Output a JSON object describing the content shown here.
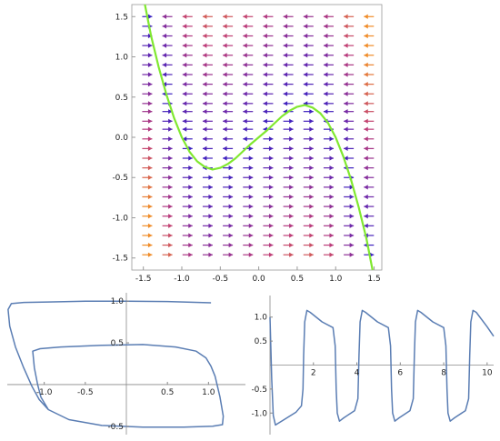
{
  "chart_data": [
    {
      "type": "vector-field",
      "title": "",
      "xlabel": "",
      "ylabel": "",
      "xlim": [
        -1.65,
        1.6
      ],
      "ylim": [
        -1.65,
        1.65
      ],
      "x_ticks": [
        "-1.5",
        "-1.0",
        "-0.5",
        "0.0",
        "0.5",
        "1.0",
        "1.5"
      ],
      "y_ticks": [
        "1.5",
        "1.0",
        "0.5",
        "0.0",
        "-0.5",
        "-1.0",
        "-1.5"
      ],
      "x_tick_values": [
        -1.5,
        -1.0,
        -0.5,
        0.0,
        0.5,
        1.0,
        1.5
      ],
      "y_tick_values": [
        1.5,
        1.0,
        0.5,
        0.0,
        -0.5,
        -1.0,
        -1.5
      ],
      "field_rows": [
        1.5,
        1.38,
        1.26,
        1.14,
        1.02,
        0.9,
        0.78,
        0.66,
        0.54,
        0.42,
        0.32,
        0.2,
        0.1,
        -0.02,
        -0.14,
        -0.26,
        -0.38,
        -0.5,
        -0.62,
        -0.74,
        -0.86,
        -0.98,
        -1.1,
        -1.22,
        -1.34,
        -1.46
      ],
      "nullcline": {
        "color": "#80e830",
        "points": [
          [
            -1.48,
            1.65
          ],
          [
            -1.4,
            1.26
          ],
          [
            -1.3,
            0.87
          ],
          [
            -1.2,
            0.53
          ],
          [
            -1.1,
            0.24
          ],
          [
            -1.0,
            0.0
          ],
          [
            -0.9,
            -0.18
          ],
          [
            -0.8,
            -0.3
          ],
          [
            -0.7,
            -0.37
          ],
          [
            -0.6,
            -0.4
          ],
          [
            -0.5,
            -0.38
          ],
          [
            -0.4,
            -0.33
          ],
          [
            -0.3,
            -0.26
          ],
          [
            -0.2,
            -0.17
          ],
          [
            -0.1,
            -0.08
          ],
          [
            0.0,
            0.0
          ],
          [
            0.1,
            0.08
          ],
          [
            0.2,
            0.17
          ],
          [
            0.3,
            0.26
          ],
          [
            0.4,
            0.33
          ],
          [
            0.5,
            0.38
          ],
          [
            0.6,
            0.4
          ],
          [
            0.7,
            0.37
          ],
          [
            0.8,
            0.3
          ],
          [
            0.9,
            0.18
          ],
          [
            1.0,
            0.0
          ],
          [
            1.1,
            -0.24
          ],
          [
            1.2,
            -0.53
          ],
          [
            1.3,
            -0.87
          ],
          [
            1.4,
            -1.26
          ],
          [
            1.48,
            -1.65
          ]
        ]
      }
    },
    {
      "type": "line",
      "title": "",
      "xlabel": "",
      "ylabel": "",
      "xlim": [
        -1.45,
        1.45
      ],
      "ylim": [
        -0.6,
        1.1
      ],
      "x_ticks": [
        "-1.0",
        "-0.5",
        "0.5",
        "1.0"
      ],
      "y_ticks": [
        "1.0",
        "0.5",
        "-0.5"
      ],
      "x_tick_values": [
        -1.0,
        -0.5,
        0.5,
        1.0
      ],
      "y_tick_values": [
        1.0,
        0.5,
        -0.5
      ],
      "series": [
        {
          "color": "#5a7db3",
          "points": [
            [
              1.03,
              0.98
            ],
            [
              0.5,
              0.995
            ],
            [
              0.0,
              1.0
            ],
            [
              -0.5,
              1.0
            ],
            [
              -0.95,
              0.99
            ],
            [
              -1.25,
              0.985
            ],
            [
              -1.4,
              0.97
            ],
            [
              -1.44,
              0.9
            ],
            [
              -1.42,
              0.7
            ],
            [
              -1.35,
              0.45
            ],
            [
              -1.25,
              0.2
            ],
            [
              -1.15,
              -0.02
            ],
            [
              -1.06,
              -0.18
            ],
            [
              -0.95,
              -0.3
            ],
            [
              -0.7,
              -0.42
            ],
            [
              -0.3,
              -0.49
            ],
            [
              0.2,
              -0.51
            ],
            [
              0.7,
              -0.51
            ],
            [
              1.05,
              -0.5
            ],
            [
              1.17,
              -0.48
            ],
            [
              1.18,
              -0.38
            ],
            [
              1.14,
              -0.15
            ],
            [
              1.08,
              0.1
            ],
            [
              1.03,
              0.22
            ],
            [
              0.97,
              0.32
            ],
            [
              0.85,
              0.4
            ],
            [
              0.6,
              0.45
            ],
            [
              0.2,
              0.48
            ],
            [
              -0.3,
              0.47
            ],
            [
              -0.8,
              0.45
            ],
            [
              -1.05,
              0.43
            ],
            [
              -1.14,
              0.4
            ],
            [
              -1.12,
              0.2
            ],
            [
              -1.08,
              0.0
            ],
            [
              -1.04,
              -0.15
            ],
            [
              -0.95,
              -0.3
            ],
            [
              -0.7,
              -0.42
            ],
            [
              -0.3,
              -0.49
            ],
            [
              0.2,
              -0.51
            ],
            [
              0.7,
              -0.51
            ],
            [
              1.05,
              -0.5
            ],
            [
              1.17,
              -0.48
            ],
            [
              1.18,
              -0.38
            ],
            [
              1.14,
              -0.15
            ],
            [
              1.08,
              0.1
            ],
            [
              1.03,
              0.22
            ],
            [
              0.97,
              0.32
            ],
            [
              0.85,
              0.4
            ],
            [
              0.6,
              0.45
            ],
            [
              0.2,
              0.48
            ],
            [
              -0.3,
              0.47
            ],
            [
              -0.8,
              0.45
            ],
            [
              -1.05,
              0.43
            ],
            [
              -1.14,
              0.4
            ]
          ]
        }
      ]
    },
    {
      "type": "line",
      "title": "",
      "xlabel": "",
      "ylabel": "",
      "xlim": [
        0,
        10.3
      ],
      "ylim": [
        -1.45,
        1.45
      ],
      "x_ticks": [
        "2",
        "4",
        "6",
        "8",
        "10"
      ],
      "y_ticks": [
        "1.0",
        "0.5",
        "-0.5",
        "-1.0"
      ],
      "x_tick_values": [
        2,
        4,
        6,
        8,
        10
      ],
      "y_tick_values": [
        1.0,
        0.5,
        -0.5,
        -1.0
      ],
      "series": [
        {
          "color": "#5a7db3",
          "points": [
            [
              0.0,
              1.0
            ],
            [
              0.08,
              -0.3
            ],
            [
              0.15,
              -1.05
            ],
            [
              0.25,
              -1.25
            ],
            [
              0.6,
              -1.15
            ],
            [
              1.2,
              -0.98
            ],
            [
              1.45,
              -0.85
            ],
            [
              1.52,
              -0.5
            ],
            [
              1.55,
              0.2
            ],
            [
              1.6,
              0.9
            ],
            [
              1.7,
              1.14
            ],
            [
              1.85,
              1.1
            ],
            [
              2.4,
              0.9
            ],
            [
              2.9,
              0.78
            ],
            [
              3.0,
              0.4
            ],
            [
              3.05,
              -0.5
            ],
            [
              3.1,
              -1.0
            ],
            [
              3.2,
              -1.17
            ],
            [
              3.4,
              -1.1
            ],
            [
              3.9,
              -0.95
            ],
            [
              4.05,
              -0.7
            ],
            [
              4.1,
              0.2
            ],
            [
              4.15,
              0.9
            ],
            [
              4.25,
              1.14
            ],
            [
              4.4,
              1.1
            ],
            [
              4.95,
              0.9
            ],
            [
              5.45,
              0.78
            ],
            [
              5.55,
              0.4
            ],
            [
              5.6,
              -0.5
            ],
            [
              5.65,
              -1.0
            ],
            [
              5.75,
              -1.17
            ],
            [
              5.95,
              -1.1
            ],
            [
              6.45,
              -0.95
            ],
            [
              6.6,
              -0.7
            ],
            [
              6.65,
              0.2
            ],
            [
              6.7,
              0.9
            ],
            [
              6.8,
              1.14
            ],
            [
              6.95,
              1.1
            ],
            [
              7.5,
              0.9
            ],
            [
              8.0,
              0.78
            ],
            [
              8.1,
              0.4
            ],
            [
              8.15,
              -0.5
            ],
            [
              8.2,
              -1.0
            ],
            [
              8.3,
              -1.17
            ],
            [
              8.5,
              -1.1
            ],
            [
              9.0,
              -0.95
            ],
            [
              9.15,
              -0.7
            ],
            [
              9.2,
              0.2
            ],
            [
              9.25,
              0.9
            ],
            [
              9.35,
              1.14
            ],
            [
              9.5,
              1.1
            ],
            [
              10.0,
              0.8
            ],
            [
              10.3,
              0.6
            ]
          ]
        }
      ]
    }
  ]
}
